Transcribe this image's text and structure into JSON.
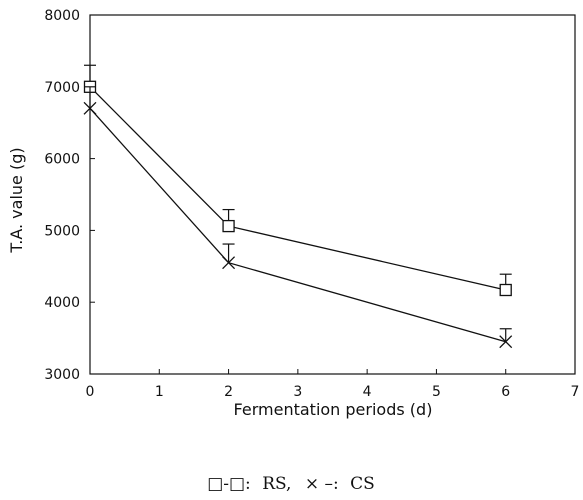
{
  "chart_data": {
    "type": "line",
    "title": "",
    "xlabel": "Fermentation periods (d)",
    "ylabel": "T.A. value (g)",
    "xlim": [
      0,
      7
    ],
    "ylim": [
      3000,
      8000
    ],
    "xticks": [
      0,
      1,
      2,
      3,
      4,
      5,
      6,
      7
    ],
    "yticks": [
      3000,
      4000,
      5000,
      6000,
      7000,
      8000
    ],
    "grid": false,
    "x": [
      0,
      2,
      6
    ],
    "series": [
      {
        "name": "RS",
        "marker": "square",
        "values": [
          7000,
          5060,
          4170
        ],
        "error_plus": [
          300,
          230,
          220
        ]
      },
      {
        "name": "CS",
        "marker": "x",
        "values": [
          6700,
          4550,
          3450
        ],
        "error_plus": [
          300,
          260,
          180
        ]
      }
    ],
    "legend_items": [
      {
        "symbol": "□-□:",
        "label": "RS,"
      },
      {
        "symbol": "× –:",
        "label": "CS"
      }
    ],
    "line_color": "#111111"
  }
}
